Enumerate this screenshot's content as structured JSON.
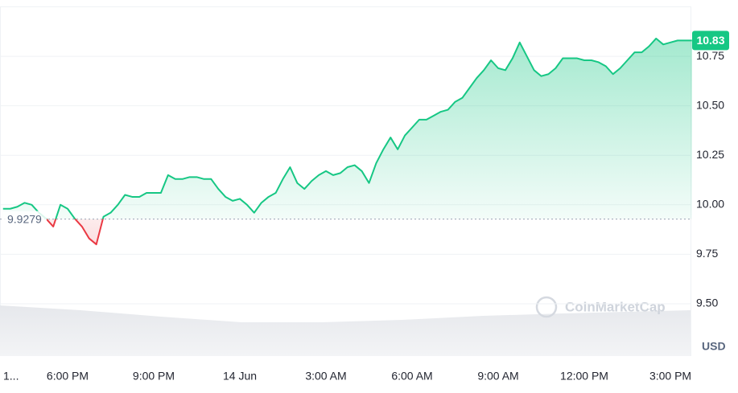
{
  "chart_data": {
    "type": "line",
    "categories": [
      "1...",
      null,
      null,
      null,
      null,
      null,
      null,
      null,
      null,
      "6:00 PM",
      null,
      null,
      null,
      null,
      null,
      null,
      null,
      null,
      null,
      null,
      null,
      "9:00 PM",
      null,
      null,
      null,
      null,
      null,
      null,
      null,
      null,
      null,
      null,
      null,
      "14 Jun",
      null,
      null,
      null,
      null,
      null,
      null,
      null,
      null,
      null,
      null,
      null,
      "3:00 AM",
      null,
      null,
      null,
      null,
      null,
      null,
      null,
      null,
      null,
      null,
      null,
      "6:00 AM",
      null,
      null,
      null,
      null,
      null,
      null,
      null,
      null,
      null,
      null,
      null,
      "9:00 AM",
      null,
      null,
      null,
      null,
      null,
      null,
      null,
      null,
      null,
      null,
      null,
      "12:00 PM",
      null,
      null,
      null,
      null,
      null,
      null,
      null,
      null,
      null,
      null,
      null,
      "3:00 PM",
      null,
      null,
      null
    ],
    "values": [
      9.98,
      9.98,
      9.99,
      10.01,
      10.0,
      9.96,
      9.93,
      9.89,
      10.0,
      9.98,
      9.93,
      9.89,
      9.83,
      9.8,
      9.94,
      9.96,
      10.0,
      10.05,
      10.04,
      10.04,
      10.06,
      10.06,
      10.06,
      10.15,
      10.13,
      10.13,
      10.14,
      10.14,
      10.13,
      10.13,
      10.08,
      10.04,
      10.02,
      10.03,
      10.0,
      9.96,
      10.01,
      10.04,
      10.06,
      10.13,
      10.19,
      10.11,
      10.08,
      10.12,
      10.15,
      10.17,
      10.15,
      10.16,
      10.19,
      10.2,
      10.17,
      10.11,
      10.21,
      10.28,
      10.34,
      10.28,
      10.35,
      10.39,
      10.43,
      10.43,
      10.45,
      10.47,
      10.48,
      10.52,
      10.54,
      10.59,
      10.64,
      10.68,
      10.73,
      10.69,
      10.68,
      10.74,
      10.82,
      10.75,
      10.68,
      10.65,
      10.66,
      10.69,
      10.74,
      10.74,
      10.74,
      10.73,
      10.73,
      10.72,
      10.7,
      10.66,
      10.69,
      10.73,
      10.77,
      10.77,
      10.8,
      10.84,
      10.81,
      10.82,
      10.83,
      10.83,
      10.83
    ],
    "color": "#16c784",
    "down_color": "#ea3943",
    "baseline": 9.9279,
    "last_price": 10.83,
    "ylim": [
      9.24,
      11.0
    ],
    "yticks": [
      {
        "value": 9.5,
        "label": "9.50"
      },
      {
        "value": 9.75,
        "label": "9.75"
      },
      {
        "value": 10.0,
        "label": "10.00"
      },
      {
        "value": 10.25,
        "label": "10.25"
      },
      {
        "value": 10.5,
        "label": "10.50"
      },
      {
        "value": 10.75,
        "label": "10.75"
      }
    ],
    "y_unit": "USD",
    "watermark": "CoinMarketCap",
    "grid": true
  }
}
